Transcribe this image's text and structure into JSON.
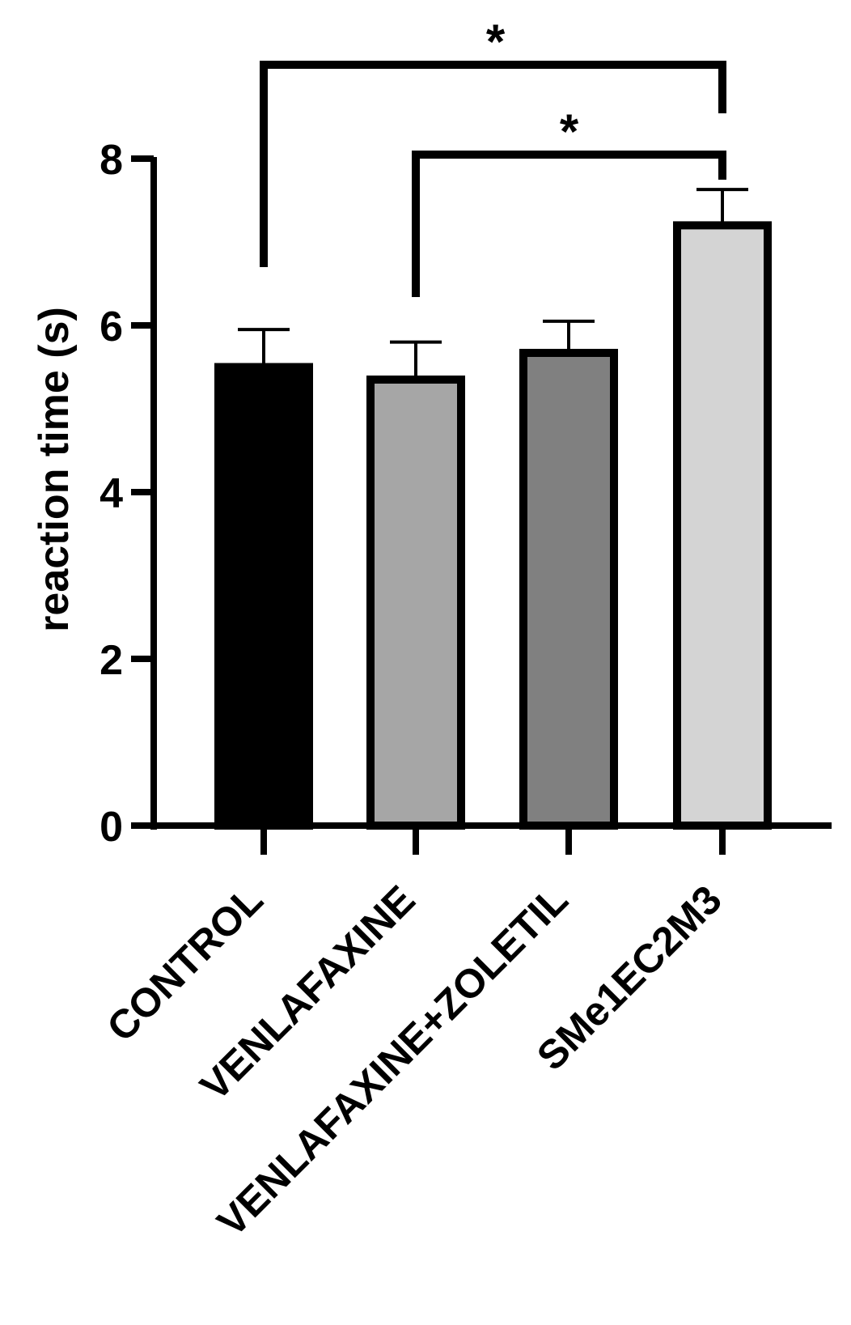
{
  "chart_data": {
    "type": "bar",
    "categories": [
      "CONTROL",
      "VENLAFAXINE",
      "VENLAFAXINE+ZOLETIL",
      "SMe1EC2M3"
    ],
    "values": [
      5.5,
      5.35,
      5.67,
      7.2
    ],
    "errors": [
      0.45,
      0.45,
      0.38,
      0.43
    ],
    "fill_colors": [
      "#000000",
      "#a6a6a6",
      "#808080",
      "#d4d4d4"
    ],
    "ylabel": "reaction time (s)",
    "ylim": [
      0,
      8
    ],
    "yticks": [
      "0",
      "2",
      "4",
      "6",
      "8"
    ],
    "grid": false,
    "significance": [
      {
        "from": "CONTROL",
        "to": "SMe1EC2M3",
        "label": "*"
      },
      {
        "from": "VENLAFAXINE",
        "to": "SMe1EC2M3",
        "label": "*"
      }
    ]
  }
}
